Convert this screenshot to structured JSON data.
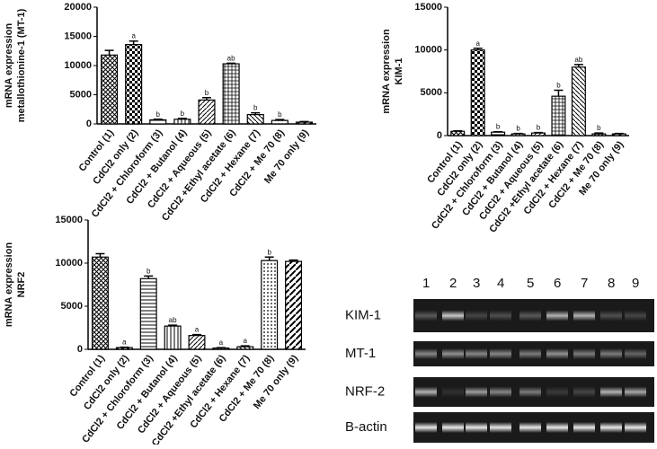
{
  "chart_data": [
    {
      "type": "bar",
      "ylabel": [
        "mRNA expression",
        "metallothionine-1 (MT-1)"
      ],
      "categories": [
        "Control (1)",
        "CdCl2 only (2)",
        "CdCl2 + Chloroform (3)",
        "CdCl2 + Butanol (4)",
        "CdCl2 + Aqueous (5)",
        "CdCl2 +Ethyl acetate (6)",
        "CdCl2 + Hexane (7)",
        "CdCl2 + Me 70 (8)",
        "Me 70 only (9)"
      ],
      "values": [
        11800,
        13600,
        700,
        800,
        4100,
        10300,
        1600,
        600,
        300
      ],
      "errors": [
        800,
        600,
        100,
        150,
        400,
        100,
        300,
        150,
        100
      ],
      "annotations": [
        null,
        "a",
        "b",
        "b",
        "b",
        "ab",
        "b",
        "b",
        null
      ],
      "ylim": [
        0,
        20000
      ],
      "yticks": [
        0,
        5000,
        10000,
        15000,
        20000
      ],
      "color": "#000000"
    },
    {
      "type": "bar",
      "ylabel": [
        "mRNA expression",
        "KIM-1"
      ],
      "categories": [
        "Control (1)",
        "CdCl2 only (2)",
        "CdCl2 + Chloroform (3)",
        "CdCl2 + Butanol (4)",
        "CdCl2 + Aqueous (5)",
        "CdCl2 +Ethyl acetate (6)",
        "CdCl2 + Hexane (7)",
        "CdCl2 + Me 70 (8)",
        "Me 70 only (9)"
      ],
      "values": [
        500,
        10000,
        400,
        200,
        300,
        4600,
        8000,
        200,
        200
      ],
      "errors": [
        50,
        200,
        50,
        50,
        50,
        700,
        300,
        100,
        50
      ],
      "annotations": [
        null,
        "a",
        "b",
        "b",
        "b",
        "b",
        "ab",
        "b",
        null
      ],
      "ylim": [
        0,
        15000
      ],
      "yticks": [
        0,
        5000,
        10000,
        15000
      ],
      "color": "#000000"
    },
    {
      "type": "bar",
      "ylabel": [
        "mRNA expression",
        "NRF2"
      ],
      "categories": [
        "Control (1)",
        "CdCl2 only (2)",
        "CdCl2 + Chloroform (3)",
        "CdCl2 + Butanol (4)",
        "CdCl2 + Aqueous (5)",
        "CdCl2 +Ethyl acetate (6)",
        "CdCl2 + Hexane (7)",
        "CdCl2 + Me 70 (8)",
        "Me 70 only (9)"
      ],
      "values": [
        10700,
        200,
        8200,
        2700,
        1600,
        150,
        300,
        10300,
        10200
      ],
      "errors": [
        400,
        50,
        300,
        100,
        100,
        50,
        100,
        400,
        150
      ],
      "annotations": [
        null,
        "a",
        "b",
        "ab",
        "a",
        "a",
        "a",
        "b",
        null
      ],
      "ylim": [
        0,
        15000
      ],
      "yticks": [
        0,
        5000,
        10000,
        15000
      ],
      "color": "#000000"
    }
  ],
  "gel": {
    "lanes": [
      "1",
      "2",
      "3",
      "4",
      "5",
      "6",
      "7",
      "8",
      "9"
    ],
    "rows": [
      "KIM-1",
      "MT-1",
      "NRF-2",
      "B-actin"
    ]
  }
}
